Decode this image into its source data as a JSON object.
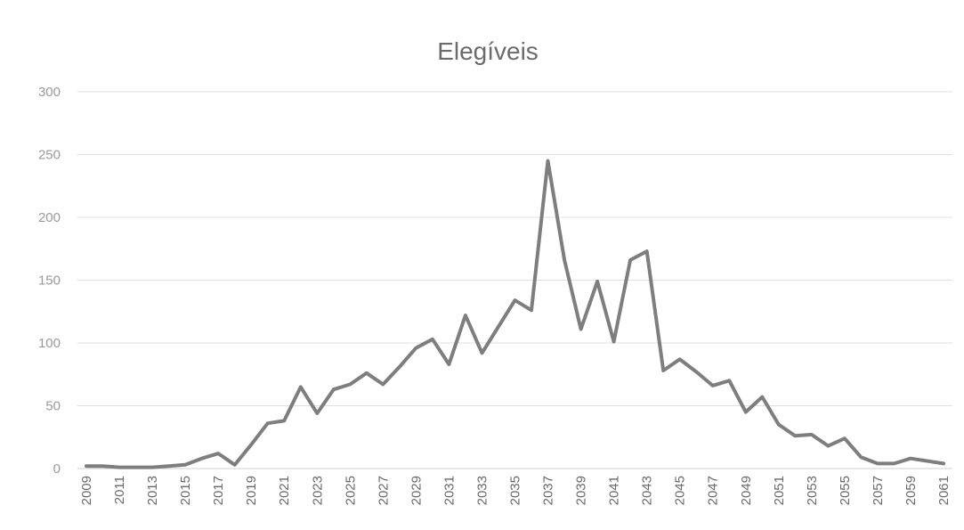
{
  "chart_data": {
    "type": "line",
    "title": "Elegíveis",
    "ylim": [
      0,
      300
    ],
    "yticks": [
      0,
      50,
      100,
      150,
      200,
      250,
      300
    ],
    "grid": true,
    "x_tick_labels": [
      "2009",
      "2011",
      "2013",
      "2015",
      "2017",
      "2019",
      "2021",
      "2023",
      "2025",
      "2027",
      "2029",
      "2031",
      "2033",
      "2035",
      "2037",
      "2039",
      "2041",
      "2043",
      "2045",
      "2047",
      "2049",
      "2051",
      "2053",
      "2055",
      "2057",
      "2059",
      "2061"
    ],
    "x": [
      2009,
      2010,
      2011,
      2012,
      2013,
      2014,
      2015,
      2016,
      2017,
      2018,
      2019,
      2020,
      2021,
      2022,
      2023,
      2024,
      2025,
      2026,
      2027,
      2028,
      2029,
      2030,
      2031,
      2032,
      2033,
      2034,
      2035,
      2036,
      2037,
      2038,
      2039,
      2040,
      2041,
      2042,
      2043,
      2044,
      2045,
      2046,
      2047,
      2048,
      2049,
      2050,
      2051,
      2052,
      2053,
      2054,
      2055,
      2056,
      2057,
      2058,
      2059,
      2060,
      2061
    ],
    "series": [
      {
        "color": "#7e7e7e",
        "values": [
          2,
          2,
          1,
          1,
          1,
          2,
          3,
          8,
          12,
          3,
          19,
          36,
          38,
          65,
          44,
          63,
          67,
          76,
          67,
          81,
          96,
          103,
          83,
          122,
          92,
          113,
          134,
          126,
          245,
          166,
          111,
          149,
          101,
          166,
          173,
          78,
          87,
          77,
          66,
          70,
          45,
          57,
          35,
          26,
          27,
          18,
          24,
          9,
          4,
          4,
          8,
          6,
          4
        ]
      }
    ]
  }
}
